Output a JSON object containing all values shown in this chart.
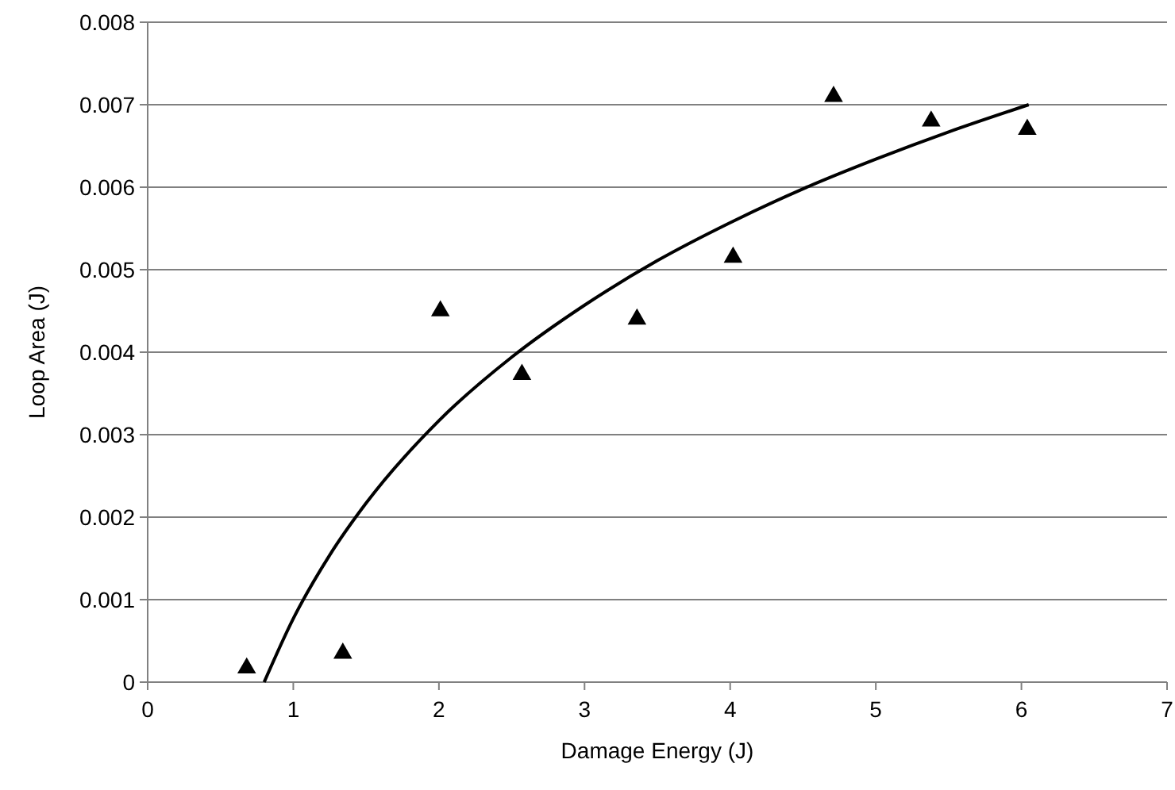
{
  "chart_data": {
    "type": "scatter",
    "xlabel": "Damage Energy (J)",
    "ylabel": "Loop Area (J)",
    "xlim": [
      0,
      7
    ],
    "xticks": [
      0,
      1,
      2,
      3,
      4,
      5,
      6,
      7
    ],
    "ylim": [
      0,
      0.008
    ],
    "yticks": [
      {
        "value": 0,
        "label": "0"
      },
      {
        "value": 0.001,
        "label": "0.001"
      },
      {
        "value": 0.002,
        "label": "0.002"
      },
      {
        "value": 0.003,
        "label": "0.003"
      },
      {
        "value": 0.004,
        "label": "0.004"
      },
      {
        "value": 0.005,
        "label": "0.005"
      },
      {
        "value": 0.006,
        "label": "0.006"
      },
      {
        "value": 0.007,
        "label": "0.007"
      },
      {
        "value": 0.008,
        "label": "0.008"
      }
    ],
    "grid": "y",
    "series": [
      {
        "color": "#000000",
        "marker": "triangle",
        "x": [
          0.68,
          1.34,
          2.01,
          2.57,
          3.36,
          4.02,
          4.71,
          5.38,
          6.04
        ],
        "values": [
          0.00017,
          0.00035,
          0.0045,
          0.00373,
          0.0044,
          0.00515,
          0.0071,
          0.0068,
          0.0067
        ]
      },
      {
        "type": "line",
        "color": "#000000",
        "marker": "none",
        "line_style": "solid",
        "x": [
          0.8,
          1,
          1.25,
          1.5,
          2,
          2.5,
          3,
          3.5,
          4,
          4.5,
          5,
          5.5,
          6.05
        ],
        "values": [
          0,
          0.00077,
          0.00154,
          0.00217,
          0.00317,
          0.00394,
          0.00457,
          0.00511,
          0.00557,
          0.00598,
          0.00634,
          0.00667,
          0.007
        ]
      }
    ]
  }
}
